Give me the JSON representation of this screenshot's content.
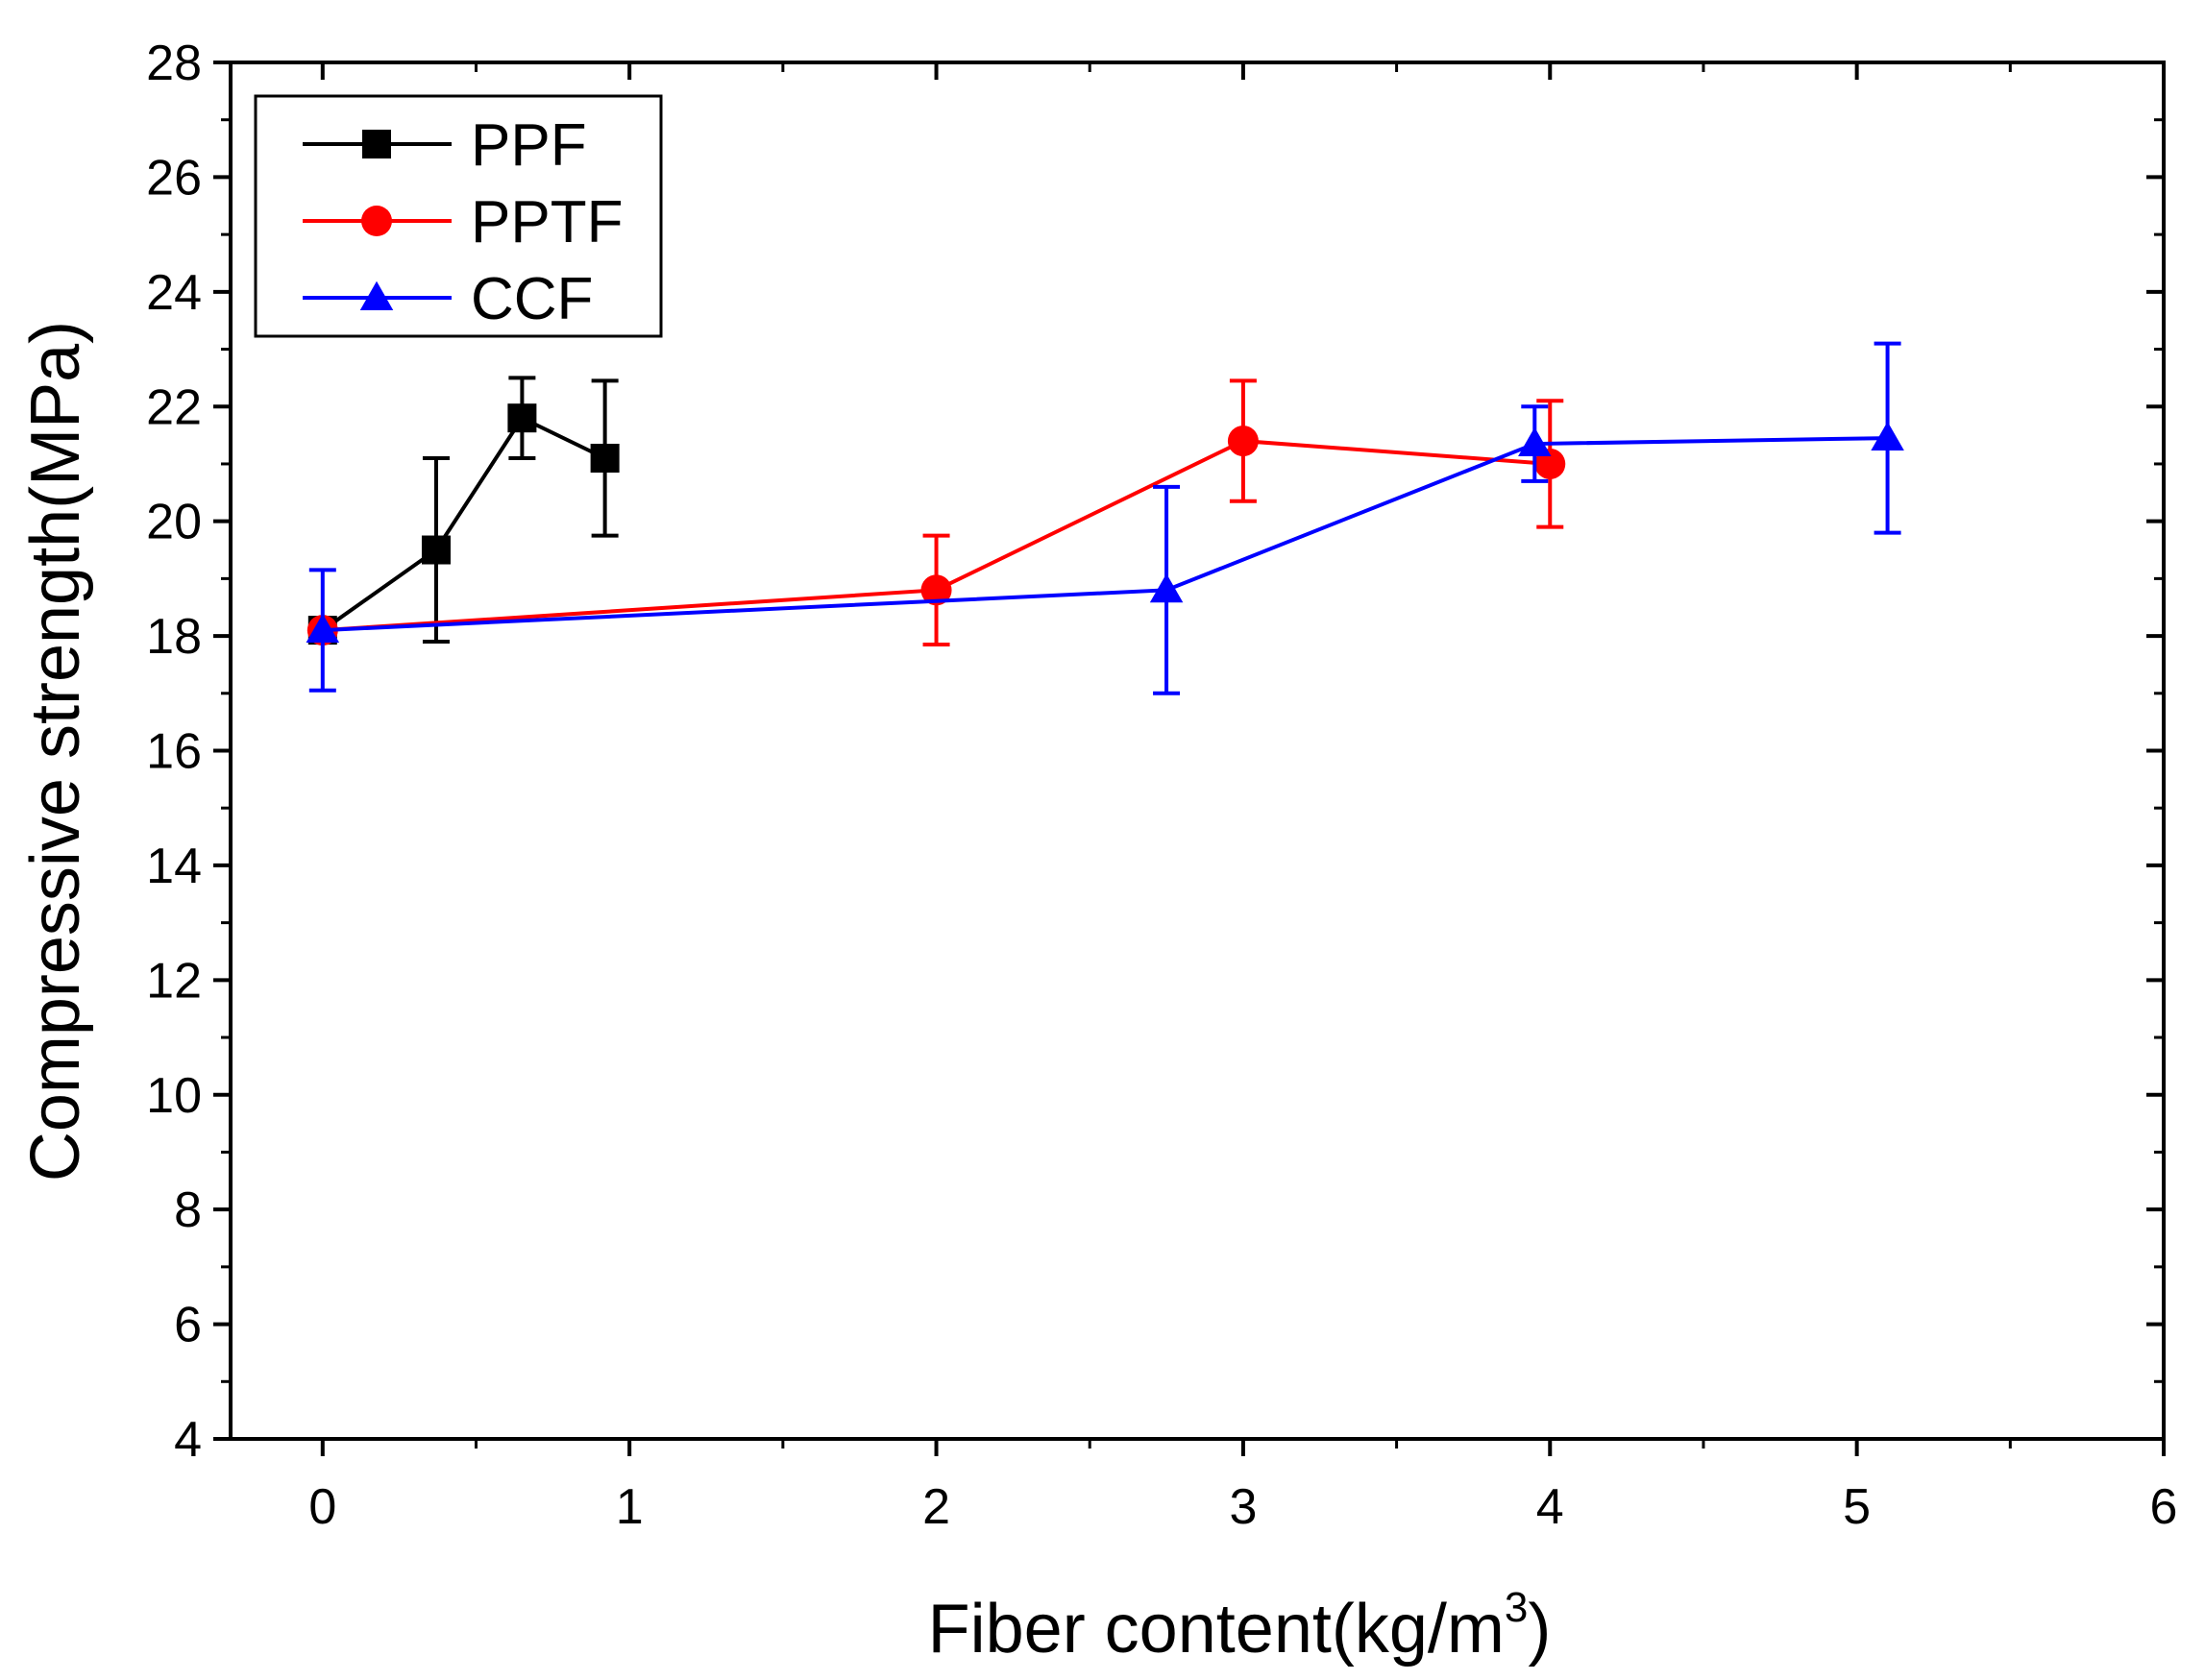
{
  "chart_data": {
    "type": "line",
    "title": "",
    "xlabel": "Fiber content(kg/m",
    "xlabel_superscript": "3",
    "xlabel_suffix": ")",
    "ylabel": "Compressive strength(MPa)",
    "xlim": [
      -0.3,
      6
    ],
    "ylim": [
      4,
      28
    ],
    "xticks": [
      0,
      1,
      2,
      3,
      4,
      5,
      6
    ],
    "xtick_labels": [
      "0",
      "1",
      "2",
      "3",
      "4",
      "5",
      "6"
    ],
    "yticks": [
      4,
      6,
      8,
      10,
      12,
      14,
      16,
      18,
      20,
      22,
      24,
      26,
      28
    ],
    "ytick_labels": [
      "4",
      "6",
      "8",
      "10",
      "12",
      "14",
      "16",
      "18",
      "20",
      "22",
      "24",
      "26",
      "28"
    ],
    "grid": false,
    "legend_position": "top-left",
    "series": [
      {
        "name": "PPF",
        "color": "#000000",
        "marker": "square",
        "x": [
          0,
          0.37,
          0.65,
          0.92
        ],
        "y": [
          18.1,
          19.5,
          21.8,
          21.1
        ],
        "err": [
          0.0,
          1.6,
          0.7,
          1.35
        ]
      },
      {
        "name": "PPTF",
        "color": "#ff0000",
        "marker": "circle",
        "x": [
          0,
          2,
          3,
          4
        ],
        "y": [
          18.1,
          18.8,
          21.4,
          21.0
        ],
        "err": [
          0.0,
          0.95,
          1.05,
          1.1
        ]
      },
      {
        "name": "CCF",
        "color": "#0000ff",
        "marker": "triangle",
        "x": [
          0,
          2.75,
          3.95,
          5.1
        ],
        "y": [
          18.1,
          18.8,
          21.35,
          21.45
        ],
        "err": [
          1.05,
          1.8,
          0.65,
          1.65
        ]
      }
    ]
  }
}
